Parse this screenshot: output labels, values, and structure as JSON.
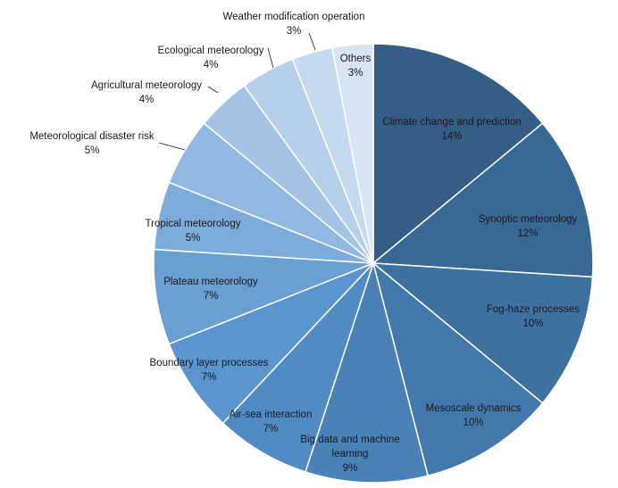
{
  "chart_data": {
    "type": "pie",
    "title": "",
    "slices": [
      {
        "label": "Climate change and prediction",
        "value": 14,
        "value_label": "14%",
        "color": "#355e86",
        "label_lines": [
          "Climate change and prediction"
        ]
      },
      {
        "label": "Synoptic meteorology",
        "value": 12,
        "value_label": "12%",
        "color": "#3a6894",
        "label_lines": [
          "Synoptic meteorology"
        ]
      },
      {
        "label": "Fog-haze processes",
        "value": 10,
        "value_label": "10%",
        "color": "#3e70a0",
        "label_lines": [
          "Fog-haze processes"
        ]
      },
      {
        "label": "Mesoscale dynamics",
        "value": 10,
        "value_label": "10%",
        "color": "#4378ac",
        "label_lines": [
          "Mesoscale dynamics"
        ]
      },
      {
        "label": "Big data and machine learning",
        "value": 9,
        "value_label": "9%",
        "color": "#4a82b8",
        "label_lines": [
          "Big data and machine",
          "learning"
        ]
      },
      {
        "label": "Air-sea interaction",
        "value": 7,
        "value_label": "7%",
        "color": "#508bc4",
        "label_lines": [
          "Air-sea interaction"
        ]
      },
      {
        "label": "Boundary layer processes",
        "value": 7,
        "value_label": "7%",
        "color": "#5a95cf",
        "label_lines": [
          "Boundary layer processes"
        ]
      },
      {
        "label": "Plateau meteorology",
        "value": 7,
        "value_label": "7%",
        "color": "#6a9fd4",
        "label_lines": [
          "Plateau meteorology"
        ]
      },
      {
        "label": "Tropical meteorology",
        "value": 5,
        "value_label": "5%",
        "color": "#7eacda",
        "label_lines": [
          "Tropical meteorology"
        ]
      },
      {
        "label": "Meteorological disaster risk",
        "value": 5,
        "value_label": "5%",
        "color": "#91b8e0",
        "label_lines": [
          "Meteorological disaster risk"
        ]
      },
      {
        "label": "Agricultural meteorology",
        "value": 4,
        "value_label": "4%",
        "color": "#a5c4e5",
        "label_lines": [
          "Agricultural meteorology"
        ]
      },
      {
        "label": "Ecological meteorology",
        "value": 4,
        "value_label": "4%",
        "color": "#b6cfea",
        "label_lines": [
          "Ecological meteorology"
        ]
      },
      {
        "label": "Weather modification operation",
        "value": 3,
        "value_label": "3%",
        "color": "#c6daef",
        "label_lines": [
          "Weather modification operation"
        ]
      },
      {
        "label": "Others",
        "value": 3,
        "value_label": "3%",
        "color": "#d6e4f4",
        "label_lines": [
          "Others"
        ]
      }
    ],
    "legend": "none",
    "data_labels": "category name and percentage"
  }
}
